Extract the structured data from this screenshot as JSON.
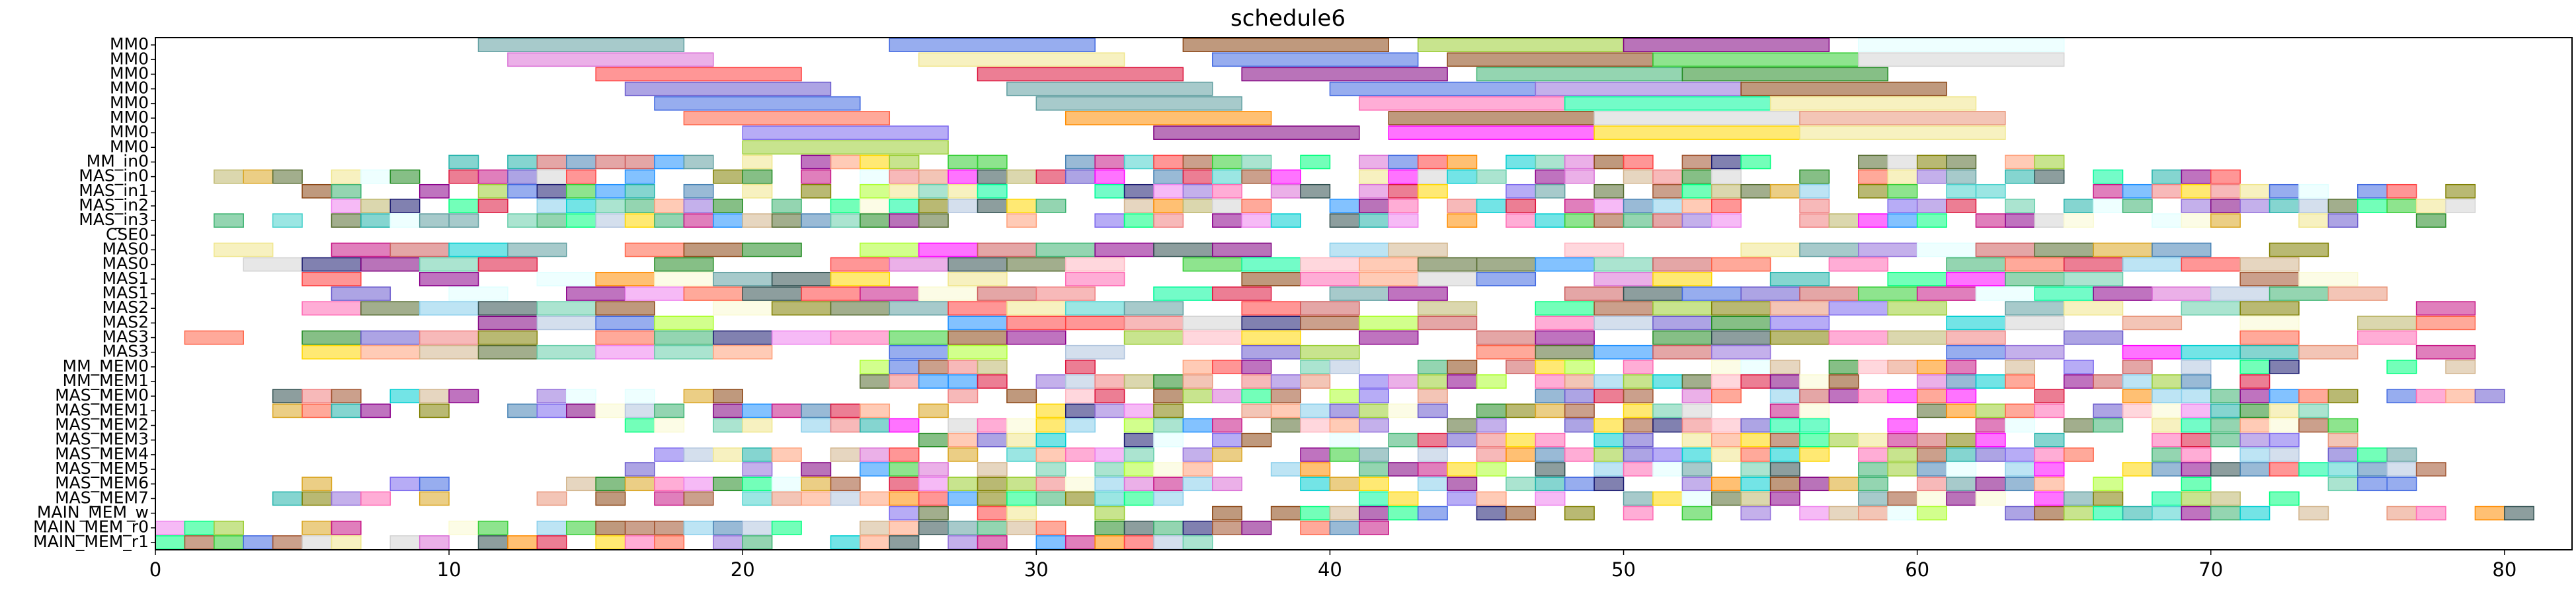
{
  "chart_data": {
    "type": "gantt",
    "title": "schedule6",
    "xlabel": "",
    "ylabel": "",
    "xlim": [
      0,
      82.3
    ],
    "xticks": [
      0,
      10,
      20,
      30,
      40,
      50,
      60,
      70,
      80
    ],
    "grid": false,
    "legend": "none",
    "rows": [
      "MM0",
      "MM0",
      "MM0",
      "MM0",
      "MM0",
      "MM0",
      "MM0",
      "MM0",
      "MM_in0",
      "MAS_in0",
      "MAS_in1",
      "MAS_in2",
      "MAS_in3",
      "CSE0",
      "MAS0",
      "MAS0",
      "MAS1",
      "MAS1",
      "MAS2",
      "MAS2",
      "MAS3",
      "MAS3",
      "MM_MEM0",
      "MM_MEM1",
      "MAS_MEM0",
      "MAS_MEM1",
      "MAS_MEM2",
      "MAS_MEM3",
      "MAS_MEM4",
      "MAS_MEM5",
      "MAS_MEM6",
      "MAS_MEM7",
      "MAIN_MEM_w",
      "MAIN_MEM_r0",
      "MAIN_MEM_r1"
    ],
    "palette": [
      "#5f9ea0",
      "#da70d6",
      "#ff4040",
      "#4682b4",
      "#4169e1",
      "#ff8c00",
      "#6a5acd",
      "#8b4513",
      "#32cd32",
      "#228b22",
      "#9acd32",
      "#bdb76b",
      "#ff69b4",
      "#48d1cc",
      "#8b008b",
      "#a0522d",
      "#66cdaa",
      "#f08080",
      "#800080",
      "#20b2aa",
      "#ff6347",
      "#9370db",
      "#3cb371",
      "#e9967a",
      "#7b68ee",
      "#00ced1",
      "#ffd700",
      "#87ceeb",
      "#dc143c",
      "#b0c4de",
      "#adff2f",
      "#ffa07a",
      "#556b2f",
      "#d2b48c",
      "#00fa9a",
      "#c71585",
      "#808000",
      "#1e90ff",
      "#ee82ee",
      "#2f4f4f",
      "#cd5c5c",
      "#ff00ff",
      "#00ff7f",
      "#daa520",
      "#ffb6c1",
      "#f0e68c",
      "#191970",
      "#fafad2",
      "#e0ffff",
      "#d3d3d3"
    ],
    "explicit": {
      "0": [
        [
          11,
          18,
          0
        ],
        [
          25,
          32,
          4
        ],
        [
          35,
          42,
          7
        ],
        [
          43,
          50,
          10
        ],
        [
          50,
          57,
          18
        ],
        [
          58,
          65,
          48
        ]
      ],
      "1": [
        [
          12,
          19,
          1
        ],
        [
          26,
          33,
          45
        ],
        [
          36,
          43,
          4
        ],
        [
          44,
          51,
          7
        ],
        [
          51,
          58,
          8
        ],
        [
          58,
          65,
          49
        ]
      ],
      "2": [
        [
          15,
          22,
          2
        ],
        [
          28,
          35,
          28
        ],
        [
          37,
          44,
          18
        ],
        [
          45,
          52,
          22
        ],
        [
          52,
          59,
          9
        ]
      ],
      "3": [
        [
          16,
          23,
          6
        ],
        [
          29,
          36,
          0
        ],
        [
          40,
          47,
          4
        ],
        [
          47,
          54,
          21
        ],
        [
          54,
          61,
          7
        ]
      ],
      "4": [
        [
          17,
          24,
          4
        ],
        [
          30,
          37,
          0
        ],
        [
          41,
          48,
          12
        ],
        [
          48,
          55,
          34
        ],
        [
          55,
          62,
          45
        ]
      ],
      "5": [
        [
          18,
          25,
          20
        ],
        [
          31,
          38,
          5
        ],
        [
          42,
          49,
          7
        ],
        [
          49,
          56,
          49
        ],
        [
          56,
          63,
          23
        ]
      ],
      "6": [
        [
          20,
          27,
          24
        ],
        [
          34,
          41,
          18
        ],
        [
          42,
          49,
          41
        ],
        [
          49,
          56,
          26
        ],
        [
          56,
          63,
          45
        ]
      ]
    },
    "dense": [
      {
        "row": 7,
        "start": 20.0,
        "end": 27.0,
        "step": 7.0,
        "dur": 7.0,
        "seed": 3
      },
      {
        "row": 8,
        "start": 10.0,
        "end": 65.0,
        "step": 1.0,
        "dur": 1.0,
        "seed": 11
      },
      {
        "row": 9,
        "start": 1.0,
        "end": 71.0,
        "step": 1.0,
        "dur": 1.0,
        "seed": 17
      },
      {
        "row": 10,
        "start": 4.0,
        "end": 80.0,
        "step": 1.0,
        "dur": 1.0,
        "seed": 23
      },
      {
        "row": 11,
        "start": 4.0,
        "end": 79.0,
        "step": 1.0,
        "dur": 1.0,
        "seed": 29
      },
      {
        "row": 12,
        "start": 0.0,
        "end": 78.0,
        "step": 1.0,
        "dur": 1.0,
        "seed": 31
      },
      {
        "row": 14,
        "start": 2.0,
        "end": 76.0,
        "step": 2.0,
        "dur": 2.0,
        "seed": 37
      },
      {
        "row": 15,
        "start": 3.0,
        "end": 74.0,
        "step": 2.0,
        "dur": 2.0,
        "seed": 41
      },
      {
        "row": 16,
        "start": 5.0,
        "end": 77.0,
        "step": 2.0,
        "dur": 2.0,
        "seed": 43
      },
      {
        "row": 17,
        "start": 6.0,
        "end": 76.0,
        "step": 2.0,
        "dur": 2.0,
        "seed": 47
      },
      {
        "row": 18,
        "start": 5.0,
        "end": 82.0,
        "step": 2.0,
        "dur": 2.0,
        "seed": 53
      },
      {
        "row": 19,
        "start": 11.0,
        "end": 79.0,
        "step": 2.0,
        "dur": 2.0,
        "seed": 59
      },
      {
        "row": 20,
        "start": 1.0,
        "end": 78.0,
        "step": 2.0,
        "dur": 2.0,
        "seed": 61
      },
      {
        "row": 21,
        "start": 5.0,
        "end": 80.0,
        "step": 2.0,
        "dur": 2.0,
        "seed": 67
      },
      {
        "row": 22,
        "start": 24.0,
        "end": 79.0,
        "step": 1.0,
        "dur": 1.0,
        "seed": 71
      },
      {
        "row": 23,
        "start": 24.0,
        "end": 74.0,
        "step": 1.0,
        "dur": 1.0,
        "seed": 73
      },
      {
        "row": 24,
        "start": 4.0,
        "end": 80.0,
        "step": 1.0,
        "dur": 1.0,
        "seed": 79
      },
      {
        "row": 25,
        "start": 4.0,
        "end": 75.0,
        "step": 1.0,
        "dur": 1.0,
        "seed": 83
      },
      {
        "row": 26,
        "start": 14.0,
        "end": 75.0,
        "step": 1.0,
        "dur": 1.0,
        "seed": 89
      },
      {
        "row": 27,
        "start": 25.0,
        "end": 75.0,
        "step": 1.0,
        "dur": 1.0,
        "seed": 97
      },
      {
        "row": 28,
        "start": 16.0,
        "end": 77.0,
        "step": 1.0,
        "dur": 1.0,
        "seed": 101
      },
      {
        "row": 29,
        "start": 15.0,
        "end": 79.0,
        "step": 1.0,
        "dur": 1.0,
        "seed": 103
      },
      {
        "row": 30,
        "start": 4.0,
        "end": 78.0,
        "step": 1.0,
        "dur": 1.0,
        "seed": 107
      },
      {
        "row": 31,
        "start": 4.0,
        "end": 74.0,
        "step": 1.0,
        "dur": 1.0,
        "seed": 109
      },
      {
        "row": 32,
        "start": 25.0,
        "end": 81.0,
        "step": 1.0,
        "dur": 1.0,
        "seed": 113
      },
      {
        "row": 33,
        "start": 0.0,
        "end": 42.0,
        "step": 1.0,
        "dur": 1.0,
        "seed": 127
      },
      {
        "row": 34,
        "start": 0.0,
        "end": 36.0,
        "step": 1.0,
        "dur": 1.0,
        "seed": 131
      }
    ]
  }
}
